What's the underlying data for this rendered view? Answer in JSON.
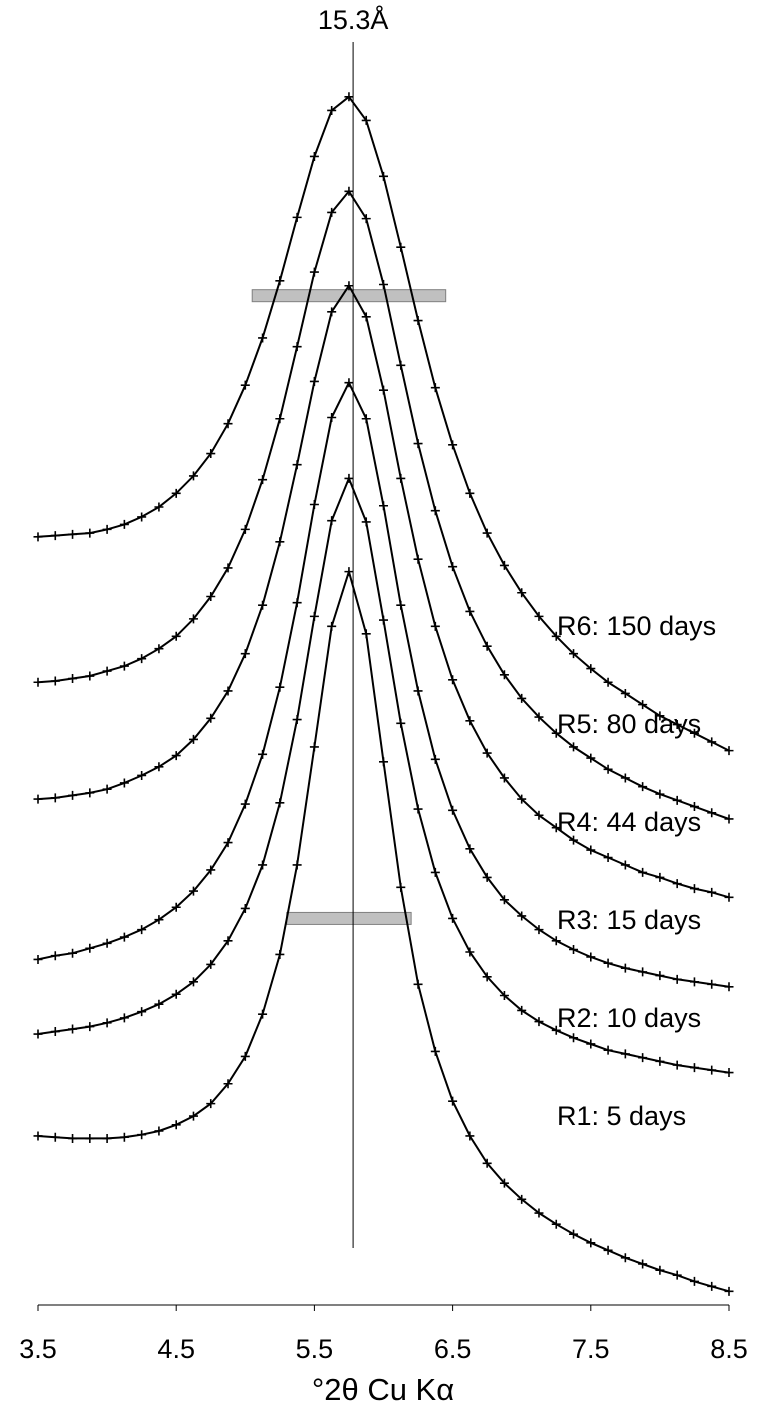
{
  "chart_data": {
    "type": "line",
    "xlabel": "°2θ Cu Kα",
    "x": [
      3.5,
      3.625,
      3.75,
      3.875,
      4.0,
      4.125,
      4.25,
      4.375,
      4.5,
      4.625,
      4.75,
      4.875,
      5.0,
      5.125,
      5.25,
      5.375,
      5.5,
      5.625,
      5.75,
      5.875,
      6.0,
      6.125,
      6.25,
      6.375,
      6.5,
      6.625,
      6.75,
      6.875,
      7.0,
      7.125,
      7.25,
      7.375,
      7.5,
      7.625,
      7.75,
      7.875,
      8.0,
      8.125,
      8.25,
      8.375,
      8.5
    ],
    "xlim": [
      3.5,
      8.5
    ],
    "xticks": [
      3.5,
      4.5,
      5.5,
      6.5,
      7.5,
      8.5
    ],
    "ylim": [
      0,
      100
    ],
    "marker": "plus",
    "series": [
      {
        "name": "R1: 5 days",
        "color": "#000000",
        "values": [
          13.6,
          13.5,
          13.4,
          13.4,
          13.4,
          13.5,
          13.7,
          14.0,
          14.5,
          15.2,
          16.2,
          17.8,
          20.0,
          23.4,
          28.2,
          35.4,
          44.9,
          54.6,
          59.0,
          54.0,
          43.7,
          33.6,
          25.8,
          20.4,
          16.4,
          13.6,
          11.4,
          9.8,
          8.5,
          7.4,
          6.5,
          5.7,
          5.0,
          4.4,
          3.8,
          3.3,
          2.8,
          2.4,
          1.9,
          1.5,
          1.1
        ]
      },
      {
        "name": "R2: 10 days",
        "color": "#000000",
        "values": [
          21.8,
          22.0,
          22.2,
          22.4,
          22.7,
          23.1,
          23.6,
          24.2,
          25.0,
          26.0,
          27.4,
          29.3,
          31.9,
          35.4,
          40.4,
          47.1,
          55.4,
          63.1,
          66.5,
          63.0,
          55.1,
          46.8,
          39.9,
          34.8,
          31.1,
          28.4,
          26.4,
          24.9,
          23.7,
          22.8,
          22.1,
          21.5,
          21.0,
          20.5,
          20.2,
          19.9,
          19.6,
          19.3,
          19.1,
          18.9,
          18.7
        ]
      },
      {
        "name": "R3: 15 days",
        "color": "#000000",
        "values": [
          27.8,
          28.1,
          28.3,
          28.7,
          29.1,
          29.6,
          30.2,
          31.0,
          32.0,
          33.3,
          35.0,
          37.2,
          40.3,
          44.3,
          49.7,
          56.5,
          64.4,
          71.4,
          74.2,
          71.3,
          64.3,
          56.3,
          49.4,
          43.9,
          39.8,
          36.7,
          34.4,
          32.6,
          31.3,
          30.2,
          29.3,
          28.6,
          28.0,
          27.5,
          27.1,
          26.8,
          26.5,
          26.2,
          26.0,
          25.8,
          25.6
        ]
      },
      {
        "name": "R4: 44 days",
        "color": "#000000",
        "values": [
          40.7,
          40.8,
          41.0,
          41.2,
          41.5,
          42.0,
          42.6,
          43.3,
          44.2,
          45.5,
          47.2,
          49.4,
          52.4,
          56.3,
          61.4,
          67.6,
          74.3,
          79.9,
          82.0,
          79.5,
          73.6,
          66.5,
          60.0,
          54.6,
          50.3,
          47.0,
          44.4,
          42.4,
          40.7,
          39.4,
          38.4,
          37.4,
          36.6,
          36.0,
          35.4,
          34.8,
          34.4,
          33.9,
          33.5,
          33.2,
          32.8
        ]
      },
      {
        "name": "R5: 80 days",
        "color": "#000000",
        "values": [
          50.1,
          50.2,
          50.4,
          50.6,
          51.0,
          51.4,
          52.0,
          52.8,
          53.8,
          55.2,
          57.0,
          59.3,
          62.4,
          66.4,
          71.3,
          77.1,
          83.1,
          87.9,
          89.6,
          87.4,
          82.1,
          75.6,
          69.3,
          63.9,
          59.4,
          55.8,
          53.0,
          50.7,
          48.8,
          47.3,
          46.0,
          44.9,
          44.0,
          43.1,
          42.4,
          41.7,
          41.1,
          40.6,
          40.1,
          39.6,
          39.1
        ]
      },
      {
        "name": "R6: 150 days",
        "color": "#000000",
        "values": [
          61.8,
          61.9,
          62.0,
          62.1,
          62.4,
          62.8,
          63.4,
          64.2,
          65.3,
          66.7,
          68.5,
          70.9,
          74.0,
          77.8,
          82.4,
          87.5,
          92.4,
          96.1,
          97.2,
          95.3,
          90.8,
          85.1,
          79.2,
          73.8,
          69.2,
          65.3,
          62.1,
          59.5,
          57.3,
          55.4,
          53.8,
          52.4,
          51.2,
          50.1,
          49.2,
          48.3,
          47.4,
          46.7,
          46.0,
          45.3,
          44.6
        ]
      }
    ],
    "vline": {
      "x": 5.78,
      "label": "15.3Å"
    },
    "bands": [
      {
        "x": [
          5.05,
          6.45
        ],
        "y": 81.2
      },
      {
        "x": [
          5.3,
          6.2
        ],
        "y": 31.1
      }
    ],
    "band_color": "#c0c0c0"
  }
}
